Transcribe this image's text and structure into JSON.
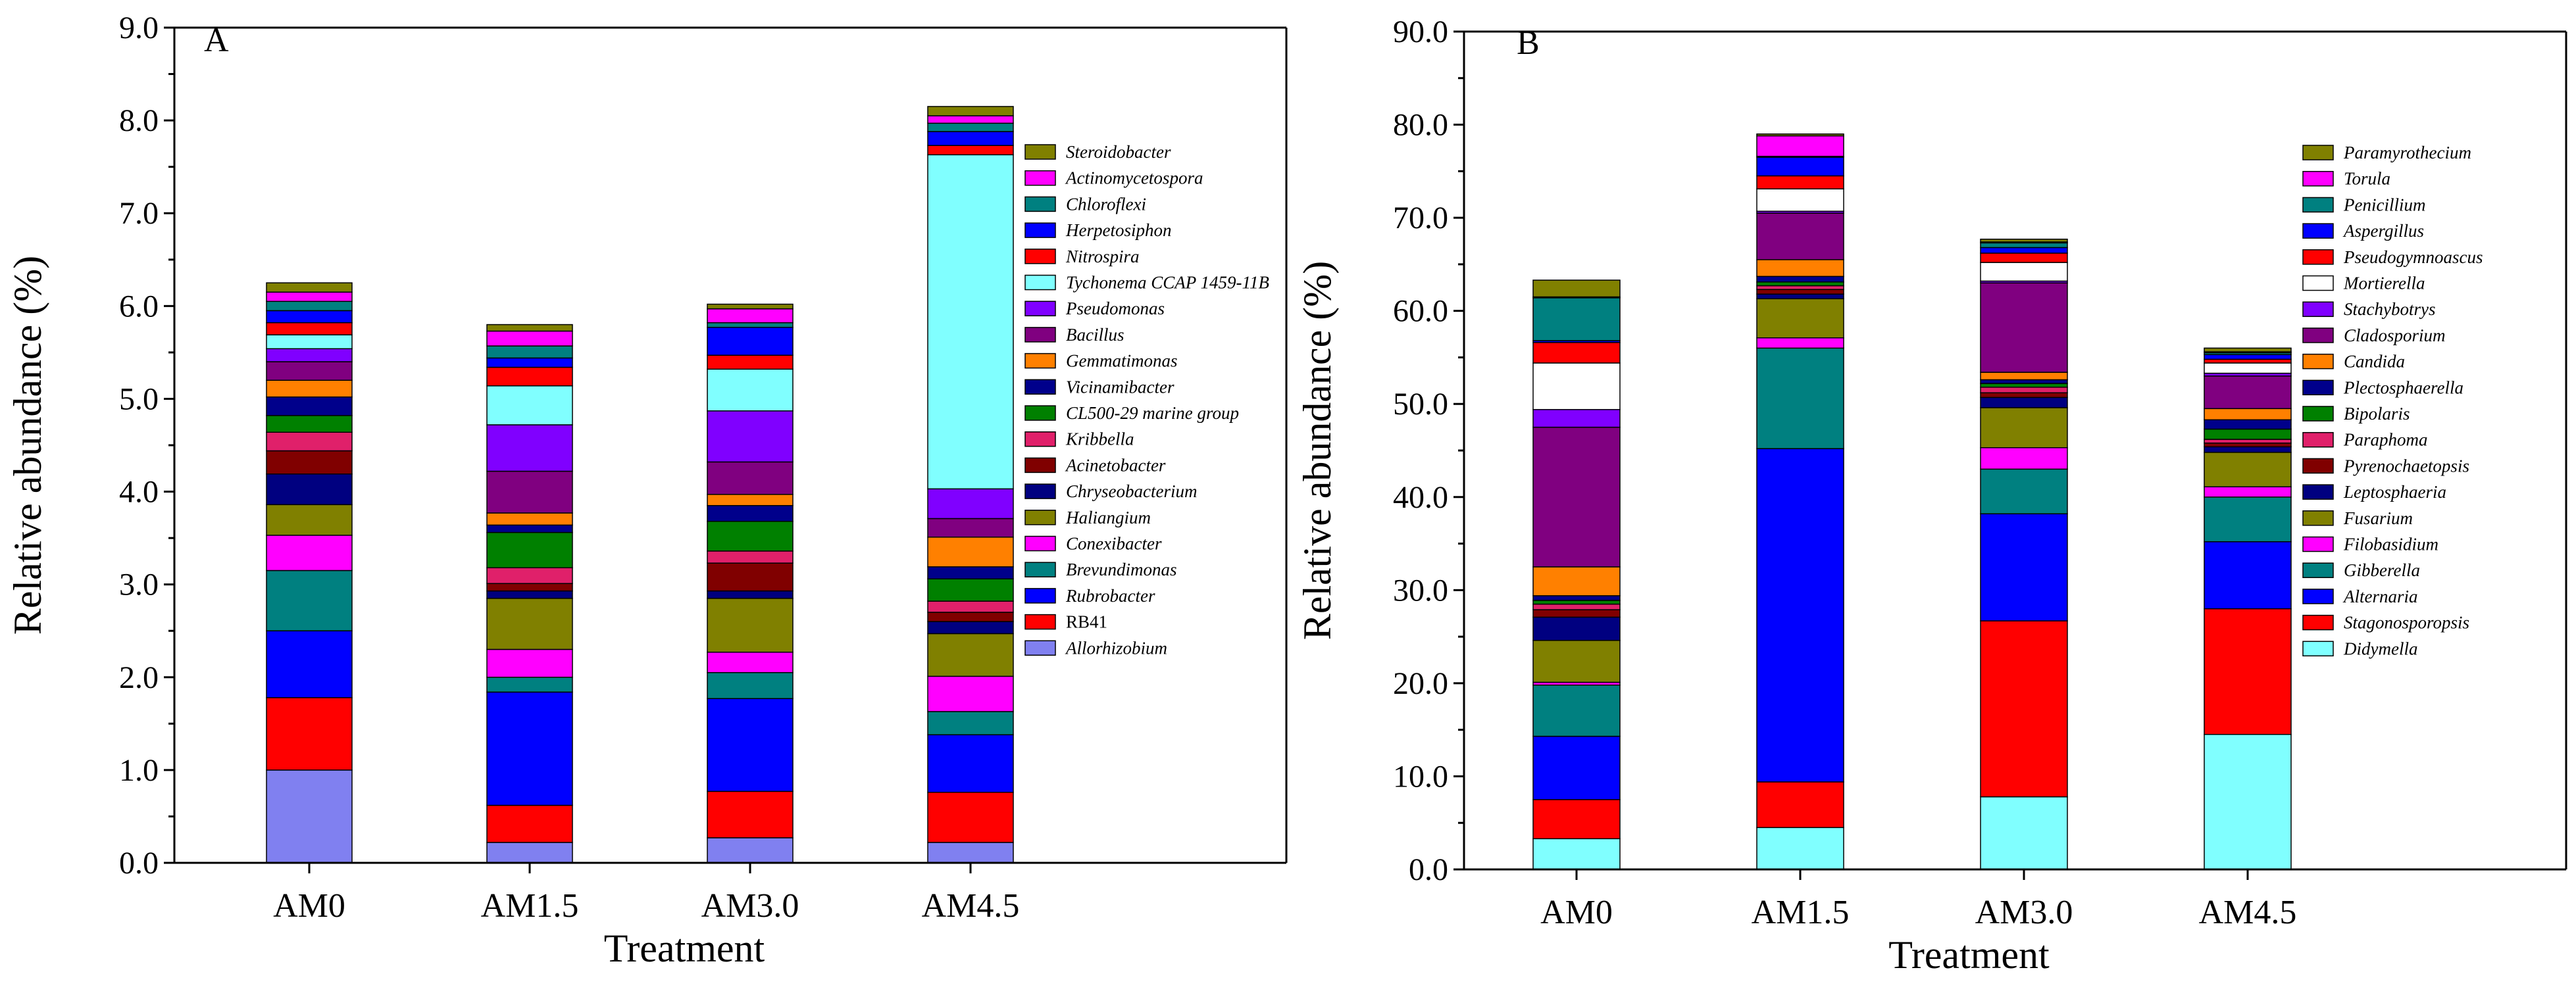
{
  "chart_data": [
    {
      "type": "bar",
      "stacked": true,
      "panel": "A",
      "xlabel": "Treatment",
      "ylabel": "Relative abundance (%)",
      "ylim": [
        0,
        9
      ],
      "yticks": [
        "0.0",
        "1.0",
        "2.0",
        "3.0",
        "4.0",
        "5.0",
        "6.0",
        "7.0",
        "8.0",
        "9.0"
      ],
      "categories": [
        "AM0",
        "AM1.5",
        "AM3.0",
        "AM4.5"
      ],
      "legend_position": "right",
      "series": [
        {
          "name": "Allorhizobium",
          "italic": true,
          "color": "#8080f0",
          "values": [
            1.0,
            0.22,
            0.27,
            0.22
          ]
        },
        {
          "name": "RB41",
          "italic": false,
          "color": "#ff0000",
          "values": [
            0.78,
            0.4,
            0.5,
            0.54
          ]
        },
        {
          "name": "Rubrobacter",
          "italic": true,
          "color": "#0000ff",
          "values": [
            0.72,
            1.22,
            1.0,
            0.62
          ]
        },
        {
          "name": "Brevundimonas",
          "italic": true,
          "color": "#008080",
          "values": [
            0.65,
            0.16,
            0.28,
            0.25
          ]
        },
        {
          "name": "Conexibacter",
          "italic": true,
          "color": "#ff00ff",
          "values": [
            0.38,
            0.3,
            0.22,
            0.38
          ]
        },
        {
          "name": "Haliangium",
          "italic": true,
          "color": "#808000",
          "values": [
            0.33,
            0.55,
            0.58,
            0.46
          ]
        },
        {
          "name": "Chryseobacterium",
          "italic": true,
          "color": "#000080",
          "values": [
            0.33,
            0.08,
            0.08,
            0.13
          ]
        },
        {
          "name": "Acinetobacter",
          "italic": true,
          "color": "#800000",
          "values": [
            0.25,
            0.08,
            0.3,
            0.1
          ]
        },
        {
          "name": "Kribbella",
          "italic": true,
          "color": "#e0206a",
          "values": [
            0.2,
            0.17,
            0.13,
            0.12
          ]
        },
        {
          "name": "CL500-29 marine group",
          "italic": true,
          "color": "#008000",
          "values": [
            0.18,
            0.38,
            0.32,
            0.24
          ]
        },
        {
          "name": "Vicinamibacter",
          "italic": true,
          "color": "#00008b",
          "values": [
            0.2,
            0.08,
            0.17,
            0.13
          ]
        },
        {
          "name": "Gemmatimonas",
          "italic": true,
          "color": "#ff8000",
          "values": [
            0.18,
            0.13,
            0.12,
            0.32
          ]
        },
        {
          "name": "Bacillus",
          "italic": true,
          "color": "#800080",
          "values": [
            0.2,
            0.45,
            0.35,
            0.2
          ]
        },
        {
          "name": "Pseudomonas",
          "italic": true,
          "color": "#8000ff",
          "values": [
            0.14,
            0.5,
            0.55,
            0.32
          ]
        },
        {
          "name": "Tychonema CCAP 1459-11B",
          "italic": true,
          "color": "#80ffff",
          "values": [
            0.15,
            0.42,
            0.45,
            3.6
          ]
        },
        {
          "name": "Nitrospira",
          "italic": true,
          "color": "#ff0000",
          "values": [
            0.13,
            0.2,
            0.15,
            0.1
          ]
        },
        {
          "name": "Herpetosiphon",
          "italic": true,
          "color": "#0000ff",
          "values": [
            0.13,
            0.1,
            0.3,
            0.15
          ]
        },
        {
          "name": "Chloroflexi",
          "italic": true,
          "color": "#008080",
          "values": [
            0.1,
            0.13,
            0.05,
            0.09
          ]
        },
        {
          "name": "Actinomycetospora",
          "italic": true,
          "color": "#ff00ff",
          "values": [
            0.1,
            0.16,
            0.15,
            0.08
          ]
        },
        {
          "name": "Steroidobacter",
          "italic": true,
          "color": "#808000",
          "values": [
            0.1,
            0.07,
            0.05,
            0.1
          ]
        }
      ]
    },
    {
      "type": "bar",
      "stacked": true,
      "panel": "B",
      "xlabel": "Treatment",
      "ylabel": "Relative abundance (%)",
      "ylim": [
        0,
        90
      ],
      "yticks": [
        "0.0",
        "10.0",
        "20.0",
        "30.0",
        "40.0",
        "50.0",
        "60.0",
        "70.0",
        "80.0",
        "90.0"
      ],
      "categories": [
        "AM0",
        "AM1.5",
        "AM3.0",
        "AM4.5"
      ],
      "legend_position": "right",
      "series": [
        {
          "name": "Didymella",
          "italic": true,
          "color": "#80ffff",
          "values": [
            3.3,
            4.5,
            7.8,
            14.5
          ]
        },
        {
          "name": "Stagonosporopsis",
          "italic": true,
          "color": "#ff0000",
          "values": [
            4.2,
            4.9,
            18.9,
            13.5
          ]
        },
        {
          "name": "Alternaria",
          "italic": true,
          "color": "#0000ff",
          "values": [
            6.8,
            35.8,
            11.5,
            7.2
          ]
        },
        {
          "name": "Gibberella",
          "italic": true,
          "color": "#008080",
          "values": [
            5.5,
            10.8,
            4.8,
            4.8
          ]
        },
        {
          "name": "Filobasidium",
          "italic": true,
          "color": "#ff00ff",
          "values": [
            0.3,
            1.1,
            2.3,
            1.1
          ]
        },
        {
          "name": "Fusarium",
          "italic": true,
          "color": "#808000",
          "values": [
            4.5,
            4.2,
            4.3,
            3.7
          ]
        },
        {
          "name": "Leptosphaeria",
          "italic": true,
          "color": "#000080",
          "values": [
            2.5,
            0.5,
            1.1,
            0.6
          ]
        },
        {
          "name": "Pyrenochaetopsis",
          "italic": true,
          "color": "#800000",
          "values": [
            0.8,
            0.5,
            0.5,
            0.4
          ]
        },
        {
          "name": "Paraphoma",
          "italic": true,
          "color": "#e0206a",
          "values": [
            0.6,
            0.4,
            0.6,
            0.4
          ]
        },
        {
          "name": "Bipolaris",
          "italic": true,
          "color": "#008000",
          "values": [
            0.4,
            0.4,
            0.4,
            1.1
          ]
        },
        {
          "name": "Plectosphaerella",
          "italic": true,
          "color": "#00008b",
          "values": [
            0.5,
            0.6,
            0.4,
            1.0
          ]
        },
        {
          "name": "Candida",
          "italic": true,
          "color": "#ff8000",
          "values": [
            3.1,
            1.8,
            0.8,
            1.2
          ]
        },
        {
          "name": "Cladosporium",
          "italic": true,
          "color": "#800080",
          "values": [
            15.0,
            5.0,
            9.6,
            3.5
          ]
        },
        {
          "name": "Stachybotrys",
          "italic": true,
          "color": "#8000ff",
          "values": [
            1.9,
            0.2,
            0.2,
            0.3
          ]
        },
        {
          "name": "Mortierella",
          "italic": true,
          "color": "#ffffff",
          "values": [
            5.0,
            2.4,
            2.0,
            1.1
          ]
        },
        {
          "name": "Pseudogymnoascus",
          "italic": true,
          "color": "#ff0000",
          "values": [
            2.2,
            1.4,
            1.0,
            0.4
          ]
        },
        {
          "name": "Aspergillus",
          "italic": true,
          "color": "#0000ff",
          "values": [
            0.2,
            2.0,
            0.6,
            0.5
          ]
        },
        {
          "name": "Penicillium",
          "italic": true,
          "color": "#008080",
          "values": [
            4.6,
            0.1,
            0.5,
            0.2
          ]
        },
        {
          "name": "Torula",
          "italic": true,
          "color": "#ff00ff",
          "values": [
            0.1,
            2.2,
            0.1,
            0.1
          ]
        },
        {
          "name": "Paramyrothecium",
          "italic": true,
          "color": "#808000",
          "values": [
            1.8,
            0.2,
            0.3,
            0.4
          ]
        }
      ]
    }
  ]
}
